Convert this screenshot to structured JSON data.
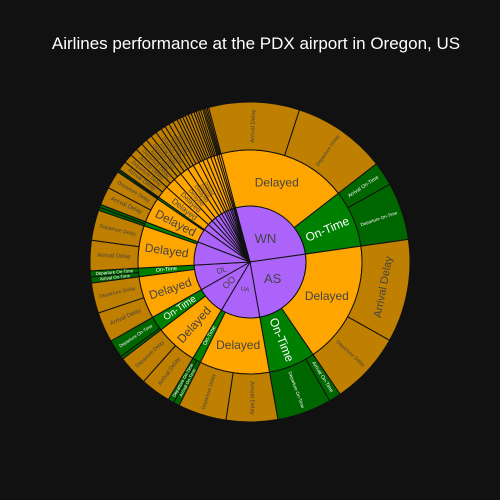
{
  "chart_data": {
    "type": "sunburst",
    "title": "Airlines performance at the PDX airport in Oregon, US",
    "colors": {
      "airline": "#ab63fa",
      "delayed": "#ffa500",
      "on_time": "#008000",
      "arrival_delay": "#bf7f00",
      "departure_delay": "#bf7f00",
      "arrival_on_time": "#006600",
      "departure_on_time": "#006600",
      "background": "#111111",
      "border": "#111111"
    },
    "airlines": [
      {
        "name": "WN",
        "children": [
          {
            "name": "Delayed",
            "value": 61,
            "children": [
              {
                "name": "Arrival Delay",
                "value": 30
              },
              {
                "name": "Departure Delay",
                "value": 31
              }
            ]
          },
          {
            "name": "On-Time",
            "value": 27,
            "children": [
              {
                "name": "Arrival On-Time",
                "value": 8
              },
              {
                "name": "Departure On-Time",
                "value": 19
              }
            ]
          }
        ]
      },
      {
        "name": "AS",
        "children": [
          {
            "name": "Delayed",
            "value": 58,
            "children": [
              {
                "name": "Arrival Delay",
                "value": 34
              },
              {
                "name": "Departure Delay",
                "value": 24
              }
            ]
          },
          {
            "name": "On-Time",
            "value": 22,
            "children": [
              {
                "name": "Arrival On-Time",
                "value": 4
              },
              {
                "name": "Departure On-Time",
                "value": 18
              }
            ]
          }
        ]
      },
      {
        "name": "UA",
        "children": [
          {
            "name": "Delayed",
            "value": 33,
            "children": [
              {
                "name": "Arrival Delay",
                "value": 17
              },
              {
                "name": "Departure Delay",
                "value": 16
              }
            ]
          },
          {
            "name": "On-Time",
            "value": 4,
            "children": [
              {
                "name": "Arrival On-Time",
                "value": 2
              },
              {
                "name": "Departure On-Time",
                "value": 2
              }
            ]
          }
        ]
      },
      {
        "name": "OO",
        "children": [
          {
            "name": "Delayed",
            "value": 20,
            "children": [
              {
                "name": "Arrival Delay",
                "value": 10
              },
              {
                "name": "Departure Delay",
                "value": 10
              }
            ]
          },
          {
            "name": "On-Time",
            "value": 7,
            "children": [
              {
                "name": "Arrival On-Time",
                "value": 1
              },
              {
                "name": "Departure On-Time",
                "value": 6
              }
            ]
          }
        ]
      },
      {
        "name": "DL",
        "children": [
          {
            "name": "Delayed",
            "value": 20,
            "children": [
              {
                "name": "Arrival Delay",
                "value": 10
              },
              {
                "name": "Departure Delay",
                "value": 10
              }
            ]
          },
          {
            "name": "On-Time",
            "value": 4,
            "children": [
              {
                "name": "Arrival On-Time",
                "value": 2
              },
              {
                "name": "Departure On-Time",
                "value": 2
              }
            ]
          }
        ]
      },
      {
        "name": "",
        "children": [
          {
            "name": "Delayed",
            "value": 20,
            "children": [
              {
                "name": "Arrival Delay",
                "value": 10
              },
              {
                "name": "Departure Delay",
                "value": 10
              }
            ]
          },
          {
            "name": "On-Time",
            "value": 2,
            "children": [
              {
                "name": "Arrival On-Time",
                "value": 1
              },
              {
                "name": "Departure On-Time",
                "value": 1
              }
            ]
          }
        ]
      },
      {
        "name": "",
        "children": [
          {
            "name": "Delayed",
            "value": 12,
            "children": [
              {
                "name": "Arrival Delay",
                "value": 6
              },
              {
                "name": "Departure Delay",
                "value": 6
              }
            ]
          },
          {
            "name": "On-Time",
            "value": 1,
            "children": [
              {
                "name": "Arrival On-Time",
                "value": 0.5
              },
              {
                "name": "Departure On-Time",
                "value": 0.5
              }
            ]
          }
        ]
      },
      {
        "name": "",
        "children": [
          {
            "name": "Delayed",
            "value": 6,
            "children": [
              {
                "name": "Arrival Delay",
                "value": 3
              },
              {
                "name": "Departure Delay",
                "value": 3
              }
            ]
          }
        ]
      },
      {
        "name": "",
        "children": [
          {
            "name": "Delayed",
            "value": 5,
            "children": [
              {
                "name": "Arrival Delay",
                "value": 2.5
              },
              {
                "name": "Departure Delay",
                "value": 2.5
              }
            ]
          }
        ]
      },
      {
        "name": "",
        "children": [
          {
            "name": "Delayed",
            "value": 4,
            "children": [
              {
                "name": "Arrival Delay",
                "value": 2
              },
              {
                "name": "Departure Delay",
                "value": 2
              }
            ]
          }
        ]
      },
      {
        "name": "",
        "children": [
          {
            "name": "Delayed",
            "value": 4,
            "children": [
              {
                "name": "Arrival Delay",
                "value": 2
              },
              {
                "name": "Departure Delay",
                "value": 2
              }
            ]
          }
        ]
      },
      {
        "name": "",
        "children": [
          {
            "name": "Delayed",
            "value": 3,
            "children": [
              {
                "name": "Arrival Delay",
                "value": 1.5
              },
              {
                "name": "Departure Delay",
                "value": 1.5
              }
            ]
          }
        ]
      },
      {
        "name": "",
        "children": [
          {
            "name": "Delayed",
            "value": 3,
            "children": [
              {
                "name": "Arrival Delay",
                "value": 1.5
              },
              {
                "name": "Departure Delay",
                "value": 1.5
              }
            ]
          }
        ]
      },
      {
        "name": "",
        "children": [
          {
            "name": "Delayed",
            "value": 2,
            "children": [
              {
                "name": "Arrival Delay",
                "value": 1
              },
              {
                "name": "Departure Delay",
                "value": 1
              }
            ]
          }
        ]
      },
      {
        "name": "",
        "children": [
          {
            "name": "Delayed",
            "value": 2,
            "children": [
              {
                "name": "Arrival Delay",
                "value": 1
              },
              {
                "name": "Departure Delay",
                "value": 1
              }
            ]
          }
        ]
      },
      {
        "name": "",
        "children": [
          {
            "name": "Delayed",
            "value": 2,
            "children": [
              {
                "name": "Arrival Delay",
                "value": 1
              },
              {
                "name": "Departure Delay",
                "value": 1
              }
            ]
          }
        ]
      },
      {
        "name": "",
        "children": [
          {
            "name": "Delayed",
            "value": 1.5,
            "children": [
              {
                "name": "Arrival Delay",
                "value": 0.75
              },
              {
                "name": "Departure Delay",
                "value": 0.75
              }
            ]
          }
        ]
      },
      {
        "name": "",
        "children": [
          {
            "name": "Delayed",
            "value": 1.5,
            "children": [
              {
                "name": "Arrival Delay",
                "value": 0.75
              },
              {
                "name": "Departure Delay",
                "value": 0.75
              }
            ]
          }
        ]
      },
      {
        "name": "",
        "children": [
          {
            "name": "Delayed",
            "value": 1,
            "children": [
              {
                "name": "Arrival Delay",
                "value": 0.5
              },
              {
                "name": "Departure Delay",
                "value": 0.5
              }
            ]
          }
        ]
      },
      {
        "name": "",
        "children": [
          {
            "name": "Delayed",
            "value": 1,
            "children": [
              {
                "name": "Arrival Delay",
                "value": 0.5
              },
              {
                "name": "Departure Delay",
                "value": 0.5
              }
            ]
          }
        ]
      }
    ]
  }
}
